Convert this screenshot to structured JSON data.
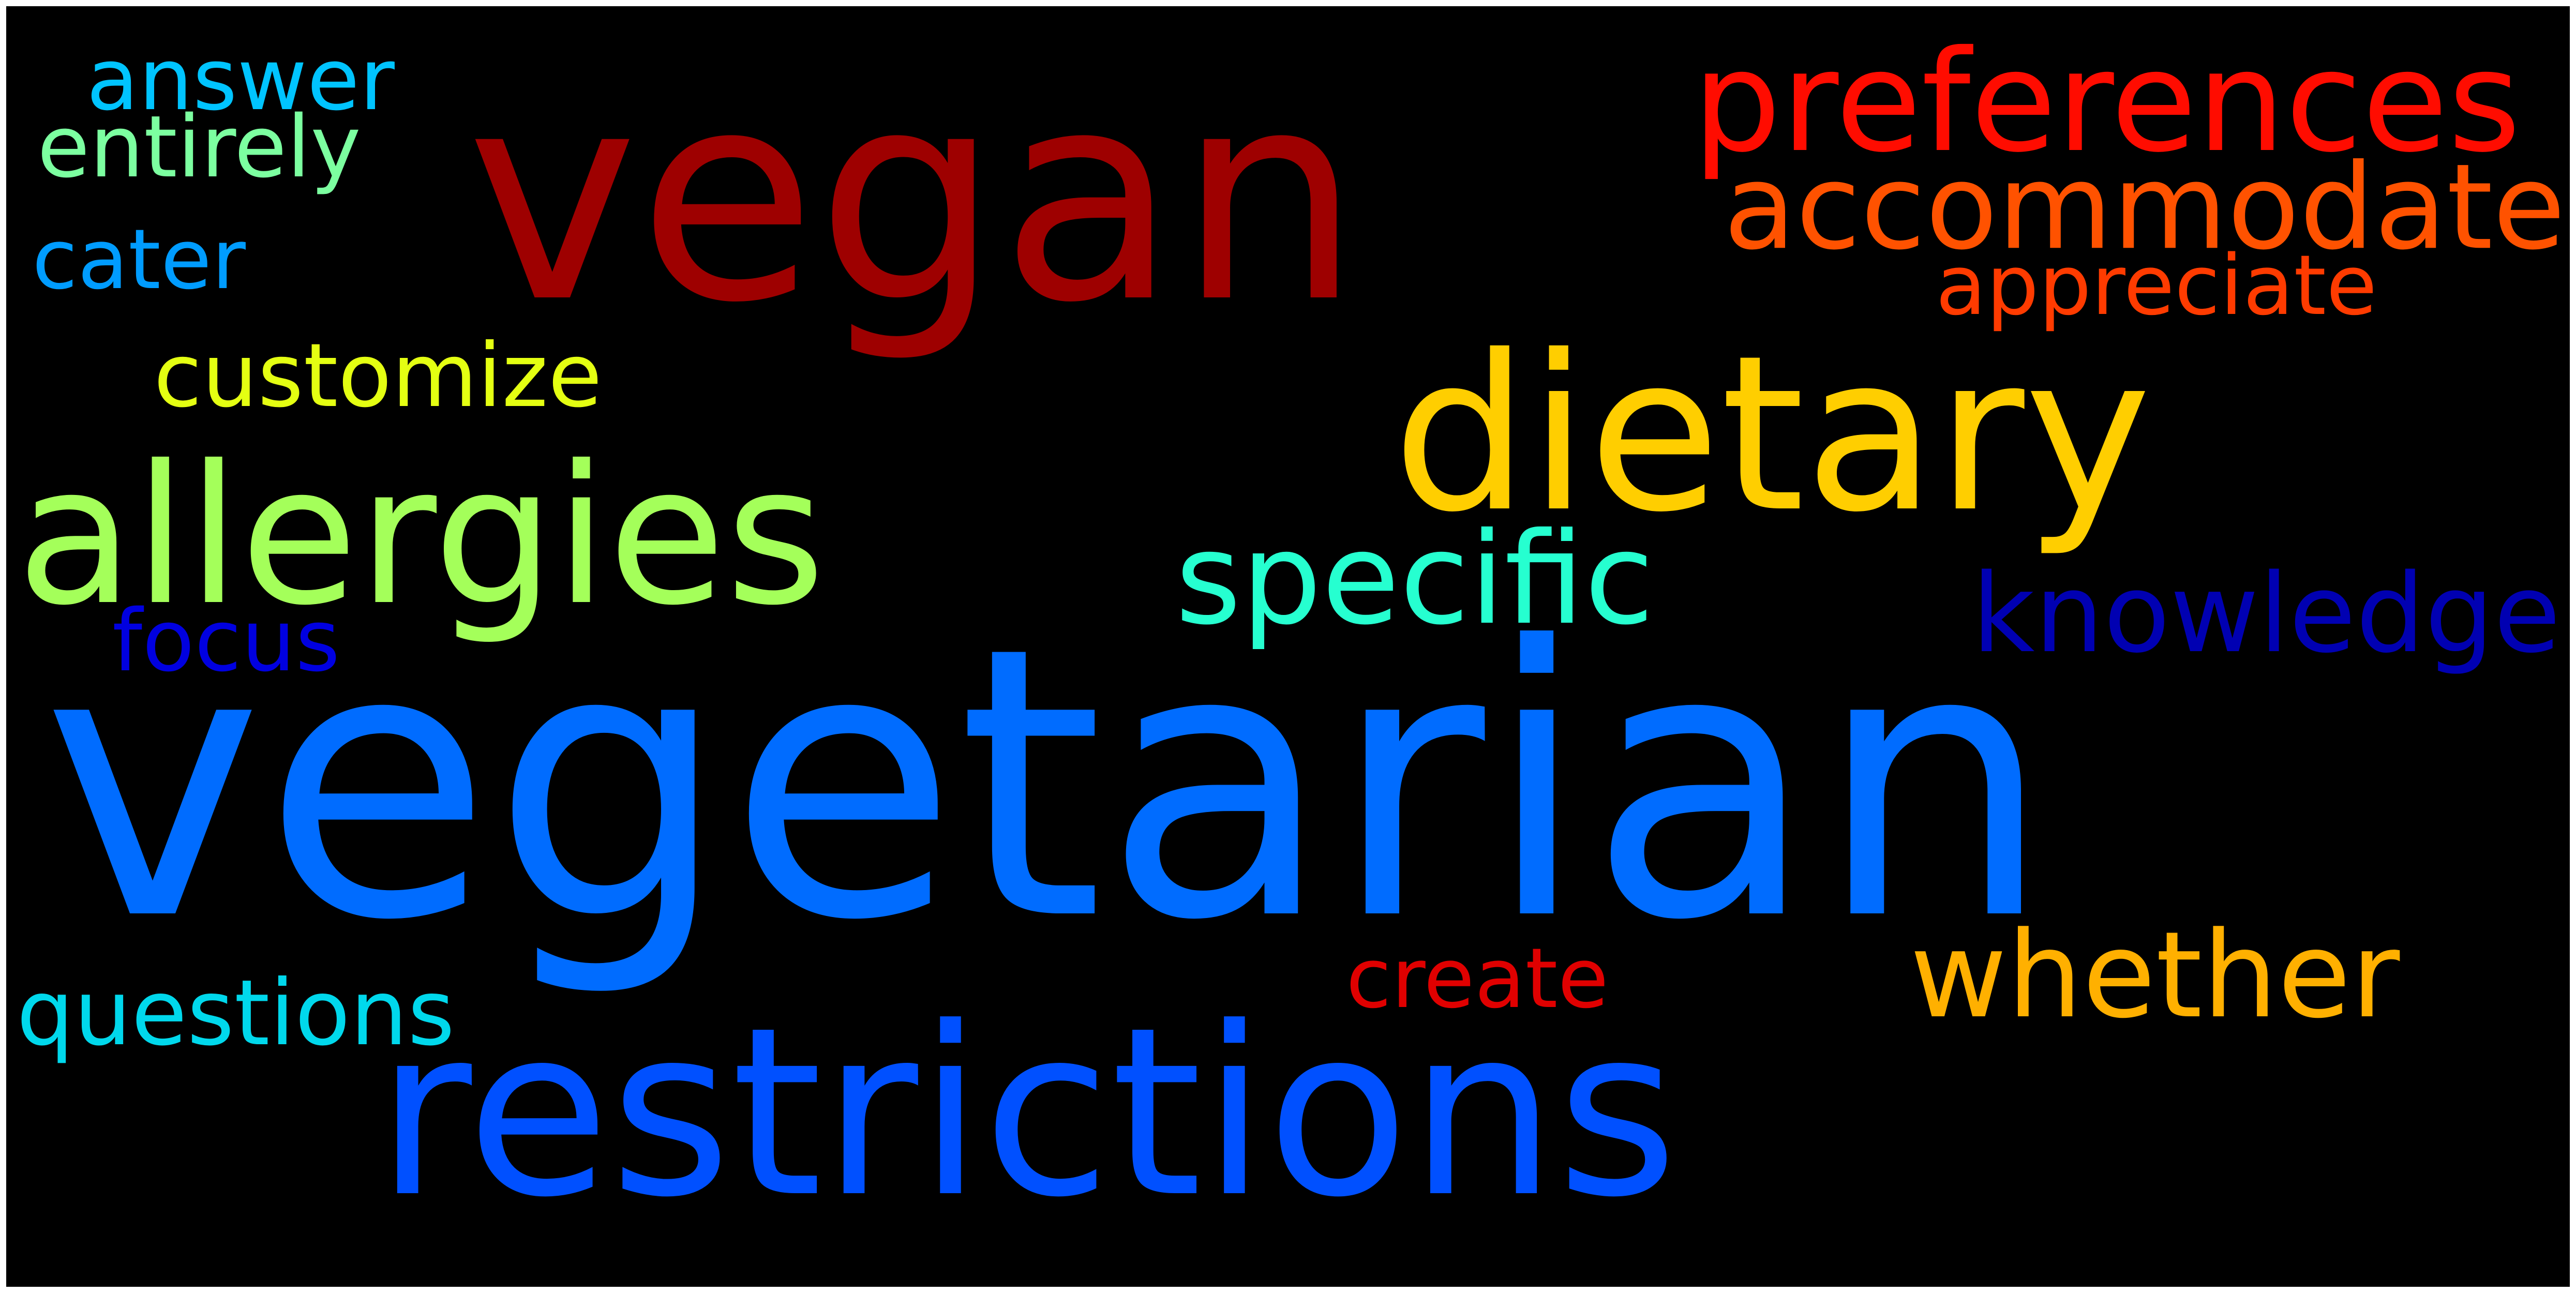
{
  "background_color": "#000000",
  "frame_color": "#ffffff",
  "words": [
    {
      "key": "vegan",
      "text": "vegan",
      "color": "#9e0000"
    },
    {
      "key": "preferences",
      "text": "preferences",
      "color": "#ff0c00"
    },
    {
      "key": "answer",
      "text": "answer",
      "color": "#00c4ff"
    },
    {
      "key": "entirely",
      "text": "entirely",
      "color": "#7cffa0"
    },
    {
      "key": "accommodate",
      "text": "accommodate",
      "color": "#ff5200"
    },
    {
      "key": "cater",
      "text": "cater",
      "color": "#009cff"
    },
    {
      "key": "appreciate",
      "text": "appreciate",
      "color": "#ff3b00"
    },
    {
      "key": "dietary",
      "text": "dietary",
      "color": "#ffce00"
    },
    {
      "key": "customize",
      "text": "customize",
      "color": "#e4ff12"
    },
    {
      "key": "allergies",
      "text": "allergies",
      "color": "#a4ff5a"
    },
    {
      "key": "specific",
      "text": "specific",
      "color": "#26ffd0"
    },
    {
      "key": "knowledge",
      "text": "knowledge",
      "color": "#0000b2"
    },
    {
      "key": "focus",
      "text": "focus",
      "color": "#0000e0"
    },
    {
      "key": "vegetarian",
      "text": "vegetarian",
      "color": "#006cff"
    },
    {
      "key": "create",
      "text": "create",
      "color": "#e00000"
    },
    {
      "key": "whether",
      "text": "whether",
      "color": "#ffb000"
    },
    {
      "key": "questions",
      "text": "questions",
      "color": "#00d8ec"
    },
    {
      "key": "restrictions",
      "text": "restrictions",
      "color": "#0050ff"
    }
  ]
}
